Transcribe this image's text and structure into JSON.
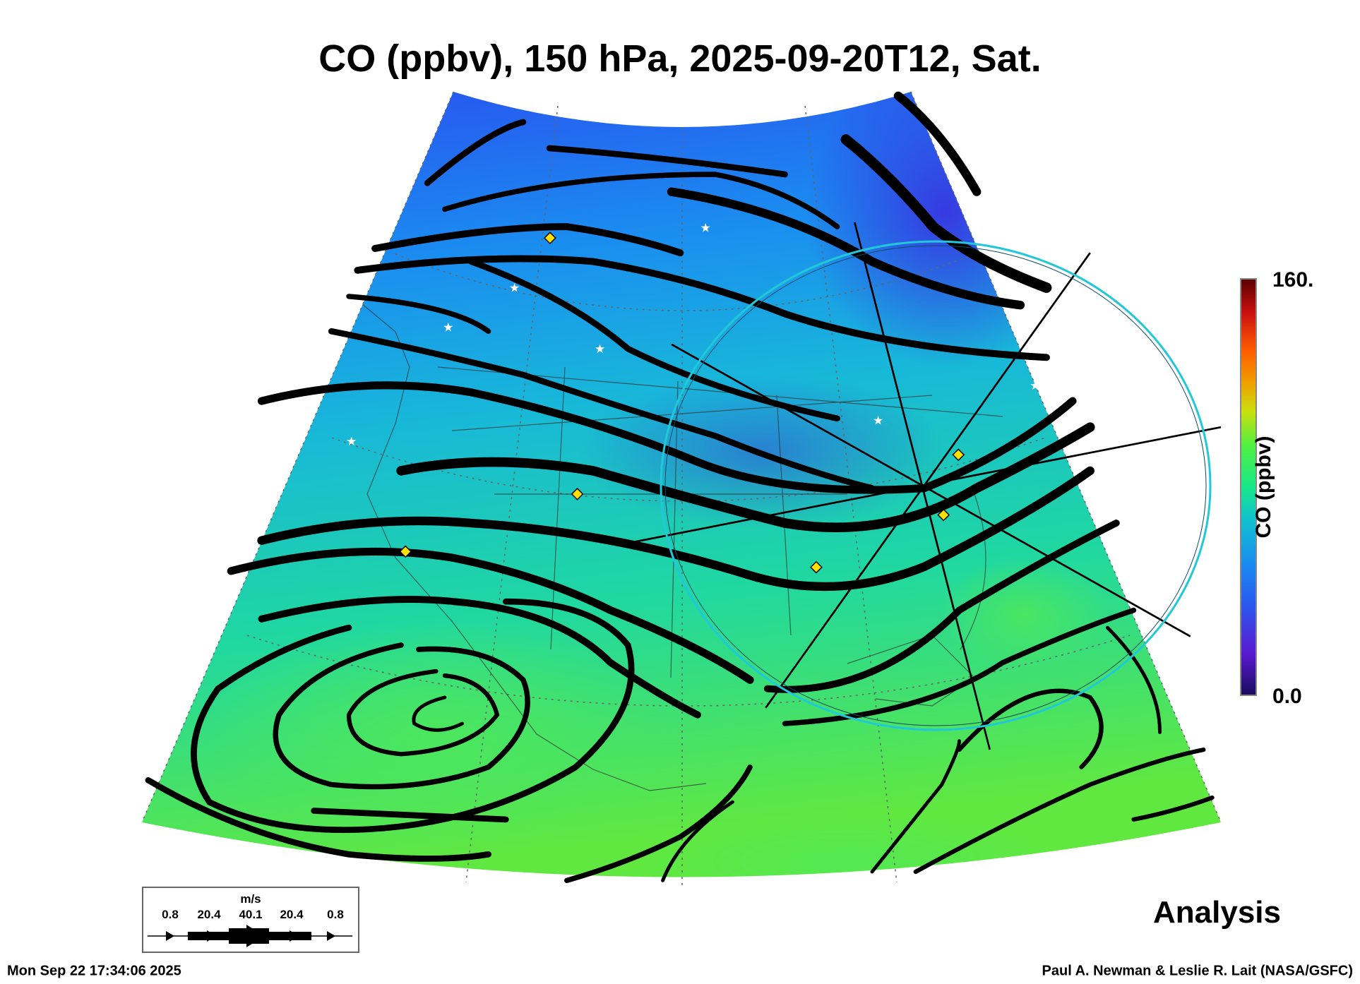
{
  "title": "CO (ppbv), 150 hPa, 2025-09-20T12, Sat.",
  "colorbar": {
    "max_label": "160.",
    "min_label": "0.0",
    "title": "CO (ppbv)",
    "colors": [
      "#1a0a5e",
      "#5a1ad0",
      "#2a5af0",
      "#1a8ef0",
      "#10c0d0",
      "#18e888",
      "#50f040",
      "#c8e010",
      "#f0a000",
      "#ff5a00",
      "#c81010",
      "#5a0000"
    ]
  },
  "wind_legend": {
    "unit": "m/s",
    "values": [
      "0.8",
      "20.4",
      "40.1",
      "20.4",
      "0.8"
    ]
  },
  "label": "Analysis",
  "footer": {
    "timestamp": "Mon Sep 22 17:34:06 2025",
    "credit": "Paul A. Newman & Leslie R. Lait (NASA/GSFC)"
  }
}
